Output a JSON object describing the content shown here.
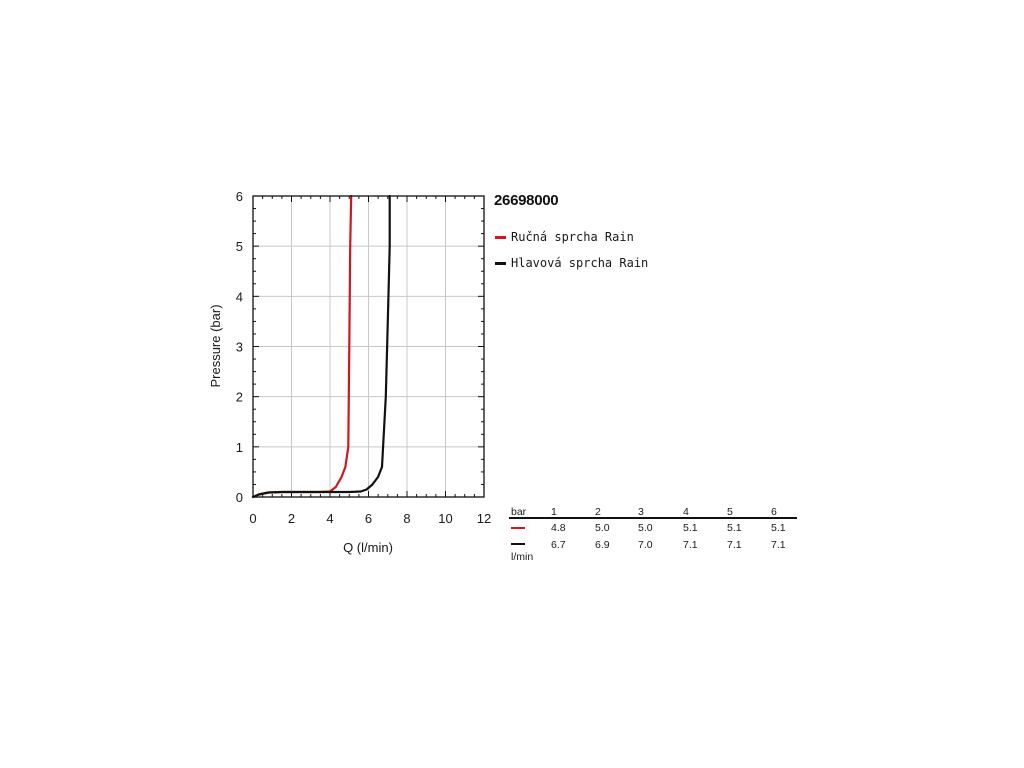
{
  "chart_data": {
    "type": "line",
    "title": "26698000",
    "xlabel": "Q (l/min)",
    "ylabel": "Pressure (bar)",
    "xlim": [
      0,
      12
    ],
    "ylim": [
      0,
      6
    ],
    "x_ticks": [
      "0",
      "2",
      "4",
      "6",
      "8",
      "10",
      "12"
    ],
    "y_ticks": [
      "0",
      "1",
      "2",
      "3",
      "4",
      "5",
      "6"
    ],
    "grid": true,
    "legend_position": "right",
    "series": [
      {
        "name": "Ručná sprcha Rain",
        "color": "#d0161e",
        "x": [
          0,
          0.3,
          0.8,
          1.5,
          2.5,
          3.5,
          4.0,
          4.3,
          4.6,
          4.8,
          4.95,
          5.0,
          5.05,
          5.1
        ],
        "y": [
          0,
          0.05,
          0.09,
          0.1,
          0.1,
          0.1,
          0.11,
          0.2,
          0.4,
          0.6,
          1.0,
          3.0,
          5.0,
          6.0
        ]
      },
      {
        "name": "Hlavová sprcha Rain",
        "color": "#111111",
        "x": [
          0,
          0.3,
          0.8,
          1.5,
          3.0,
          5.0,
          5.6,
          5.9,
          6.2,
          6.5,
          6.7,
          6.9,
          7.0,
          7.1,
          7.1
        ],
        "y": [
          0,
          0.05,
          0.09,
          0.1,
          0.1,
          0.1,
          0.11,
          0.15,
          0.25,
          0.4,
          0.6,
          2.0,
          3.5,
          5.0,
          6.0
        ]
      }
    ]
  },
  "table": {
    "header_label": "bar",
    "unit_label": "l/min",
    "pressures": [
      "1",
      "2",
      "3",
      "4",
      "5",
      "6"
    ],
    "rows": [
      {
        "color": "#d0161e",
        "values": [
          "4.8",
          "5.0",
          "5.0",
          "5.1",
          "5.1",
          "5.1"
        ]
      },
      {
        "color": "#111111",
        "values": [
          "6.7",
          "6.9",
          "7.0",
          "7.1",
          "7.1",
          "7.1"
        ]
      }
    ]
  }
}
